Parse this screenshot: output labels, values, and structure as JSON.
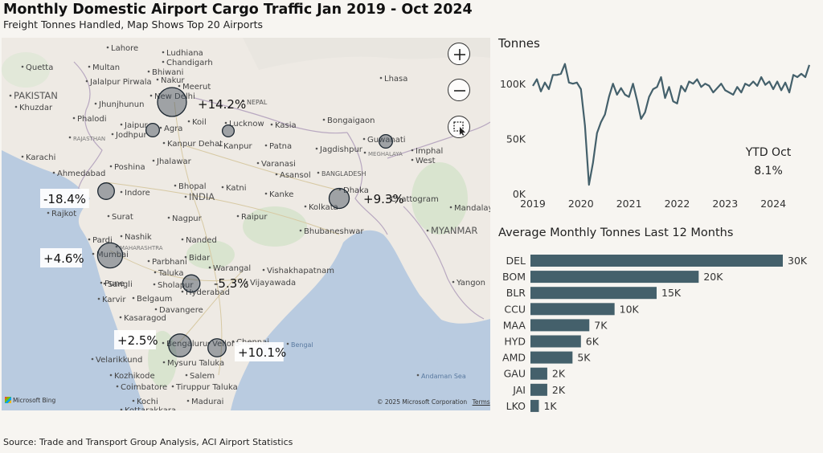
{
  "title": "Monthly Domestic Airport Cargo Traffic Jan 2019 - Oct 2024",
  "subtitle": "Freight Tonnes Handled, Map Shows Top 20 Airports",
  "source": "Source: Trade and Transport Group Analysis, ACI Airport Statistics",
  "map": {
    "attribution_left": "Microsoft Bing",
    "attribution_right": "© 2025 Microsoft Corporation",
    "terms": "Terms",
    "colors": {
      "land": "#eeeae4",
      "water": "#b9cbe0",
      "bubble": "#3e4c59",
      "park": "#d9e4cf"
    },
    "place_labels": [
      {
        "text": "Lahore"
      },
      {
        "text": "Ludhiana"
      },
      {
        "text": "Chandigarh"
      },
      {
        "text": "Quetta"
      },
      {
        "text": "Multan"
      },
      {
        "text": "Bhiwani"
      },
      {
        "text": "Jalalpur Pirwala"
      },
      {
        "text": "PAKISTAN"
      },
      {
        "text": "Nakur"
      },
      {
        "text": "Meerut"
      },
      {
        "text": "Khuzdar"
      },
      {
        "text": "New Delhi"
      },
      {
        "text": "Jhunjhunun"
      },
      {
        "text": "NEPAL"
      },
      {
        "text": "Phalodi"
      },
      {
        "text": "Agra"
      },
      {
        "text": "Koil"
      },
      {
        "text": "Lucknow"
      },
      {
        "text": "Kasia"
      },
      {
        "text": "Lhasa"
      },
      {
        "text": "Jaipur"
      },
      {
        "text": "Jodhpur"
      },
      {
        "text": "RAJASTHAN"
      },
      {
        "text": "Kanpur Dehat"
      },
      {
        "text": "Kanpur"
      },
      {
        "text": "Patna"
      },
      {
        "text": "Bongaigaon"
      },
      {
        "text": "Guwahati"
      },
      {
        "text": "Jagdishpur"
      },
      {
        "text": "MEGHALAYA"
      },
      {
        "text": "Imphal"
      },
      {
        "text": "West"
      },
      {
        "text": "Karachi"
      },
      {
        "text": "Jhalawar"
      },
      {
        "text": "Varanasi"
      },
      {
        "text": "Poshina"
      },
      {
        "text": "Asansol"
      },
      {
        "text": "Ahmedabad"
      },
      {
        "text": "Indore"
      },
      {
        "text": "Bhopal"
      },
      {
        "text": "INDIA"
      },
      {
        "text": "Katni"
      },
      {
        "text": "Kanke"
      },
      {
        "text": "BANGLADESH"
      },
      {
        "text": "Dhaka"
      },
      {
        "text": "Kolkata"
      },
      {
        "text": "Chattogram"
      },
      {
        "text": "Rajkot"
      },
      {
        "text": "Surat"
      },
      {
        "text": "Nagpur"
      },
      {
        "text": "Raipur"
      },
      {
        "text": "Mandalay"
      },
      {
        "text": "Nashik"
      },
      {
        "text": "MYANMAR"
      },
      {
        "text": "Pardi"
      },
      {
        "text": "Nanded"
      },
      {
        "text": "Bhubaneshwar"
      },
      {
        "text": "MAHARASHTRA"
      },
      {
        "text": "Mumbai"
      },
      {
        "text": "Parbhani"
      },
      {
        "text": "Taluka"
      },
      {
        "text": "Bidar"
      },
      {
        "text": "Warangal"
      },
      {
        "text": "Pune"
      },
      {
        "text": "Vishakhapatnam"
      },
      {
        "text": "Sangli"
      },
      {
        "text": "Sholapur"
      },
      {
        "text": "Hyderabad"
      },
      {
        "text": "Karvir"
      },
      {
        "text": "Belgaum"
      },
      {
        "text": "Vijayawada"
      },
      {
        "text": "Davangere"
      },
      {
        "text": "Yangon"
      },
      {
        "text": "Kasaragod"
      },
      {
        "text": "Bengaluru"
      },
      {
        "text": "Vellore"
      },
      {
        "text": "Chennai"
      },
      {
        "text": "Bengal"
      },
      {
        "text": "Velarikkund"
      },
      {
        "text": "Mysuru Taluka"
      },
      {
        "text": "Kozhikode"
      },
      {
        "text": "Salem"
      },
      {
        "text": "Andaman Sea"
      },
      {
        "text": "Coimbatore"
      },
      {
        "text": "Tiruppur Taluka"
      },
      {
        "text": "Kochi"
      },
      {
        "text": "Madurai"
      },
      {
        "text": "Kottarakkara"
      }
    ],
    "bubbles": [
      {
        "name": "DEL",
        "label": "+14.2%",
        "value": 30
      },
      {
        "name": "AMD",
        "label": "-18.4%",
        "value": 5
      },
      {
        "name": "CCU",
        "label": "+9.3%",
        "value": 10
      },
      {
        "name": "BOM",
        "label": "+4.6%",
        "value": 20
      },
      {
        "name": "HYD",
        "label": "-5.3%",
        "value": 6
      },
      {
        "name": "BLR",
        "label": "+2.5%",
        "value": 15
      },
      {
        "name": "MAA",
        "label": "+10.1%",
        "value": 7
      },
      {
        "name": "JAI",
        "label": "",
        "value": 2
      },
      {
        "name": "LKO",
        "label": "",
        "value": 1
      },
      {
        "name": "GAU",
        "label": "",
        "value": 2
      }
    ]
  },
  "ytd": {
    "label": "YTD Oct",
    "value": "8.1%"
  },
  "chart_data": [
    {
      "type": "line",
      "title": "Tonnes",
      "x_ticks": [
        "2019",
        "2020",
        "2021",
        "2022",
        "2023",
        "2024"
      ],
      "y_ticks": [
        "0K",
        "50K",
        "100K"
      ],
      "ylim": [
        0,
        125000
      ],
      "xlim": [
        "2018-12",
        "2024-11"
      ],
      "x": [
        "2019-01",
        "2019-02",
        "2019-03",
        "2019-04",
        "2019-05",
        "2019-06",
        "2019-07",
        "2019-08",
        "2019-09",
        "2019-10",
        "2019-11",
        "2019-12",
        "2020-01",
        "2020-02",
        "2020-03",
        "2020-04",
        "2020-05",
        "2020-06",
        "2020-07",
        "2020-08",
        "2020-09",
        "2020-10",
        "2020-11",
        "2020-12",
        "2021-01",
        "2021-02",
        "2021-03",
        "2021-04",
        "2021-05",
        "2021-06",
        "2021-07",
        "2021-08",
        "2021-09",
        "2021-10",
        "2021-11",
        "2021-12",
        "2022-01",
        "2022-02",
        "2022-03",
        "2022-04",
        "2022-05",
        "2022-06",
        "2022-07",
        "2022-08",
        "2022-09",
        "2022-10",
        "2022-11",
        "2022-12",
        "2023-01",
        "2023-02",
        "2023-03",
        "2023-04",
        "2023-05",
        "2023-06",
        "2023-07",
        "2023-08",
        "2023-09",
        "2023-10",
        "2023-11",
        "2023-12",
        "2024-01",
        "2024-02",
        "2024-03",
        "2024-04",
        "2024-05",
        "2024-06",
        "2024-07",
        "2024-08",
        "2024-09",
        "2024-10"
      ],
      "values": [
        98000,
        104000,
        93000,
        101000,
        95000,
        108000,
        108000,
        109000,
        118000,
        101000,
        100000,
        101000,
        95000,
        62000,
        8000,
        28000,
        55000,
        65000,
        72000,
        88000,
        100000,
        90000,
        96000,
        90000,
        88000,
        100000,
        85000,
        68000,
        74000,
        88000,
        95000,
        97000,
        106000,
        87000,
        97000,
        84000,
        82000,
        98000,
        93000,
        102000,
        100000,
        104000,
        97000,
        100000,
        98000,
        92000,
        96000,
        100000,
        94000,
        92000,
        90000,
        97000,
        92000,
        100000,
        98000,
        102000,
        98000,
        106000,
        99000,
        102000,
        95000,
        102000,
        94000,
        101000,
        92000,
        108000,
        106000,
        109000,
        106000,
        117000
      ]
    },
    {
      "type": "bar",
      "orientation": "horizontal",
      "title": "Average Monthly Tonnes Last 12 Months",
      "categories": [
        "DEL",
        "BOM",
        "BLR",
        "CCU",
        "MAA",
        "HYD",
        "AMD",
        "GAU",
        "JAI",
        "LKO"
      ],
      "values": [
        30,
        20,
        15,
        10,
        7,
        6,
        5,
        2,
        2,
        1
      ],
      "labels": [
        "30K",
        "20K",
        "15K",
        "10K",
        "7K",
        "6K",
        "5K",
        "2K",
        "2K",
        "1K"
      ],
      "unit": "K",
      "xlim": [
        0,
        30
      ],
      "color": "#44606b"
    }
  ]
}
